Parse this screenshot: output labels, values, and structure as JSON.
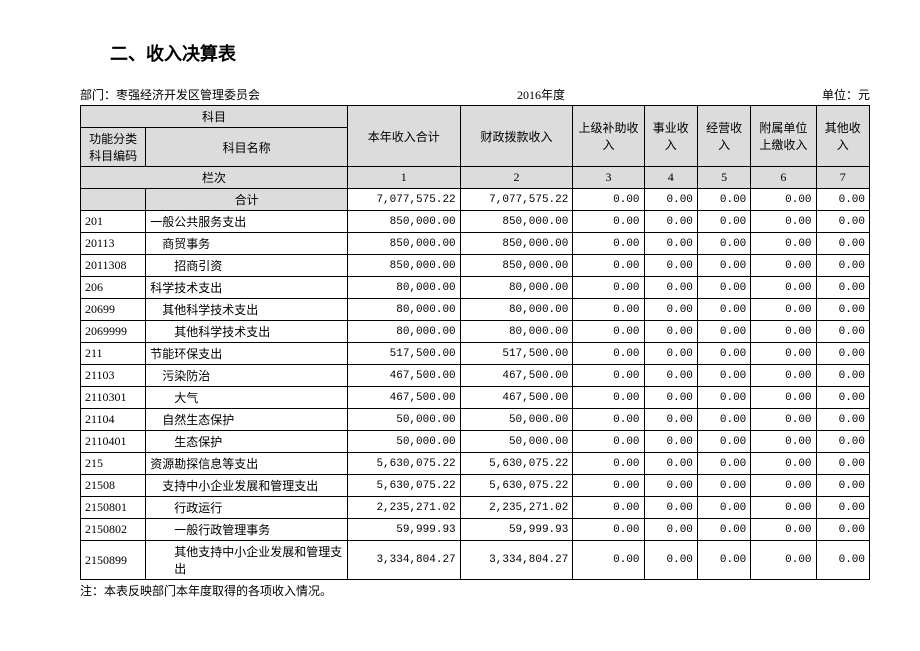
{
  "title": "二、收入决算表",
  "meta": {
    "dept_label": "部门：枣强经济开发区管理委员会",
    "year": "2016年度",
    "unit": "单位：元"
  },
  "header": {
    "subject_group": "科目",
    "code": "功能分类科目编码",
    "name": "科目名称",
    "cols": [
      "本年收入合计",
      "财政拨款收入",
      "上级补助收入",
      "事业收入",
      "经营收入",
      "附属单位上缴收入",
      "其他收入"
    ],
    "lanci_label": "栏次",
    "lanci": [
      "1",
      "2",
      "3",
      "4",
      "5",
      "6",
      "7"
    ]
  },
  "sum_label": "合计",
  "sum_values": [
    "7,077,575.22",
    "7,077,575.22",
    "0.00",
    "0.00",
    "0.00",
    "0.00",
    "0.00"
  ],
  "rows": [
    {
      "code": "201",
      "name": "一般公共服务支出",
      "indent": 0,
      "v": [
        "850,000.00",
        "850,000.00",
        "0.00",
        "0.00",
        "0.00",
        "0.00",
        "0.00"
      ]
    },
    {
      "code": "20113",
      "name": "商贸事务",
      "indent": 1,
      "v": [
        "850,000.00",
        "850,000.00",
        "0.00",
        "0.00",
        "0.00",
        "0.00",
        "0.00"
      ]
    },
    {
      "code": "2011308",
      "name": "招商引资",
      "indent": 2,
      "v": [
        "850,000.00",
        "850,000.00",
        "0.00",
        "0.00",
        "0.00",
        "0.00",
        "0.00"
      ]
    },
    {
      "code": "206",
      "name": "科学技术支出",
      "indent": 0,
      "v": [
        "80,000.00",
        "80,000.00",
        "0.00",
        "0.00",
        "0.00",
        "0.00",
        "0.00"
      ]
    },
    {
      "code": "20699",
      "name": "其他科学技术支出",
      "indent": 1,
      "v": [
        "80,000.00",
        "80,000.00",
        "0.00",
        "0.00",
        "0.00",
        "0.00",
        "0.00"
      ]
    },
    {
      "code": "2069999",
      "name": "其他科学技术支出",
      "indent": 2,
      "v": [
        "80,000.00",
        "80,000.00",
        "0.00",
        "0.00",
        "0.00",
        "0.00",
        "0.00"
      ]
    },
    {
      "code": "211",
      "name": "节能环保支出",
      "indent": 0,
      "v": [
        "517,500.00",
        "517,500.00",
        "0.00",
        "0.00",
        "0.00",
        "0.00",
        "0.00"
      ]
    },
    {
      "code": "21103",
      "name": "污染防治",
      "indent": 1,
      "v": [
        "467,500.00",
        "467,500.00",
        "0.00",
        "0.00",
        "0.00",
        "0.00",
        "0.00"
      ]
    },
    {
      "code": "2110301",
      "name": "大气",
      "indent": 2,
      "v": [
        "467,500.00",
        "467,500.00",
        "0.00",
        "0.00",
        "0.00",
        "0.00",
        "0.00"
      ]
    },
    {
      "code": "21104",
      "name": "自然生态保护",
      "indent": 1,
      "v": [
        "50,000.00",
        "50,000.00",
        "0.00",
        "0.00",
        "0.00",
        "0.00",
        "0.00"
      ]
    },
    {
      "code": "2110401",
      "name": "生态保护",
      "indent": 2,
      "v": [
        "50,000.00",
        "50,000.00",
        "0.00",
        "0.00",
        "0.00",
        "0.00",
        "0.00"
      ]
    },
    {
      "code": "215",
      "name": "资源勘探信息等支出",
      "indent": 0,
      "v": [
        "5,630,075.22",
        "5,630,075.22",
        "0.00",
        "0.00",
        "0.00",
        "0.00",
        "0.00"
      ]
    },
    {
      "code": "21508",
      "name": "支持中小企业发展和管理支出",
      "indent": 1,
      "v": [
        "5,630,075.22",
        "5,630,075.22",
        "0.00",
        "0.00",
        "0.00",
        "0.00",
        "0.00"
      ]
    },
    {
      "code": "2150801",
      "name": "行政运行",
      "indent": 2,
      "v": [
        "2,235,271.02",
        "2,235,271.02",
        "0.00",
        "0.00",
        "0.00",
        "0.00",
        "0.00"
      ]
    },
    {
      "code": "2150802",
      "name": "一般行政管理事务",
      "indent": 2,
      "v": [
        "59,999.93",
        "59,999.93",
        "0.00",
        "0.00",
        "0.00",
        "0.00",
        "0.00"
      ]
    },
    {
      "code": "2150899",
      "name": "其他支持中小企业发展和管理支出",
      "indent": 2,
      "v": [
        "3,334,804.27",
        "3,334,804.27",
        "0.00",
        "0.00",
        "0.00",
        "0.00",
        "0.00"
      ]
    }
  ],
  "note": "注：本表反映部门本年度取得的各项收入情况。",
  "style": {
    "header_bg": "#dcdcdc",
    "border_color": "#000000",
    "text_color": "#000000",
    "background_color": "#ffffff",
    "title_fontsize": 18,
    "body_fontsize": 12,
    "num_fontsize": 11
  }
}
